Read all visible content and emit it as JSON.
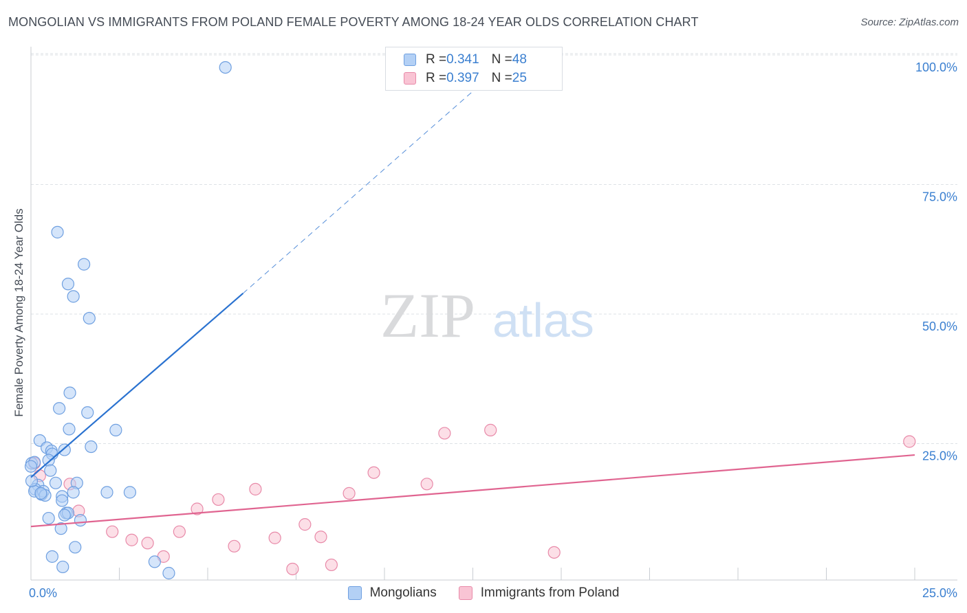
{
  "title": "MONGOLIAN VS IMMIGRANTS FROM POLAND FEMALE POVERTY AMONG 18-24 YEAR OLDS CORRELATION CHART",
  "source": "Source: ZipAtlas.com",
  "watermark": {
    "zip": "ZIP",
    "atlas": "atlas"
  },
  "colors": {
    "mongolians_fill": "#b3d0f5",
    "mongolians_stroke": "#6e9fe0",
    "mongolians_line": "#2a72d0",
    "poland_fill": "#f9c4d4",
    "poland_stroke": "#e889a8",
    "poland_line": "#e06490",
    "axis_label_color": "#3a7fd0",
    "grid_color": "#dde1e6"
  },
  "legend": {
    "rows": [
      {
        "r_label": "R = ",
        "r_value": "0.341",
        "n_label": "N = ",
        "n_value": "48"
      },
      {
        "r_label": "R = ",
        "r_value": "0.397",
        "n_label": "N = ",
        "n_value": "25"
      }
    ]
  },
  "chart_data": {
    "type": "scatter",
    "title": "MONGOLIAN VS IMMIGRANTS FROM POLAND FEMALE POVERTY AMONG 18-24 YEAR OLDS CORRELATION CHART",
    "xlabel": "",
    "ylabel": "Female Poverty Among 18-24 Year Olds",
    "xlim": [
      0,
      25
    ],
    "ylim": [
      0,
      100
    ],
    "x_ticks": [
      0,
      25
    ],
    "x_tick_labels": [
      "0.0%",
      "25.0%"
    ],
    "y_ticks": [
      25,
      50,
      75,
      100
    ],
    "y_tick_labels": [
      "25.0%",
      "50.0%",
      "75.0%",
      "100.0%"
    ],
    "grid": true,
    "legend_position": "top-center",
    "series": [
      {
        "name": "Mongolians",
        "R": 0.341,
        "N": 48,
        "trend": {
          "x0": 0.0,
          "y0": 18.5,
          "x1": 6.0,
          "y1": 54.0,
          "dash_to_x": 13.0,
          "dash_to_y": 96.0
        },
        "points": [
          [
            5.5,
            97.6
          ],
          [
            0.75,
            65.8
          ],
          [
            1.5,
            59.6
          ],
          [
            1.05,
            55.8
          ],
          [
            1.2,
            53.4
          ],
          [
            1.65,
            49.2
          ],
          [
            1.1,
            34.8
          ],
          [
            0.8,
            31.8
          ],
          [
            1.6,
            31.0
          ],
          [
            1.08,
            27.8
          ],
          [
            2.4,
            27.6
          ],
          [
            1.7,
            24.4
          ],
          [
            0.25,
            25.6
          ],
          [
            0.45,
            24.2
          ],
          [
            0.58,
            23.6
          ],
          [
            0.95,
            23.8
          ],
          [
            0.6,
            23.0
          ],
          [
            0.5,
            21.8
          ],
          [
            0.02,
            21.2
          ],
          [
            0.1,
            21.4
          ],
          [
            0.55,
            19.8
          ],
          [
            0.0,
            20.6
          ],
          [
            0.2,
            17.0
          ],
          [
            0.12,
            16.2
          ],
          [
            0.1,
            15.8
          ],
          [
            0.3,
            15.2
          ],
          [
            0.35,
            15.8
          ],
          [
            0.4,
            15.0
          ],
          [
            0.7,
            17.4
          ],
          [
            1.3,
            17.4
          ],
          [
            0.88,
            14.8
          ],
          [
            1.2,
            15.6
          ],
          [
            2.15,
            15.6
          ],
          [
            2.8,
            15.6
          ],
          [
            0.88,
            14.0
          ],
          [
            0.5,
            10.6
          ],
          [
            1.0,
            11.6
          ],
          [
            1.05,
            11.6
          ],
          [
            0.95,
            11.2
          ],
          [
            1.4,
            10.2
          ],
          [
            0.85,
            8.6
          ],
          [
            1.25,
            5.0
          ],
          [
            0.6,
            3.2
          ],
          [
            0.9,
            1.2
          ],
          [
            3.5,
            2.2
          ],
          [
            3.9,
            0.0
          ],
          [
            0.02,
            17.8
          ],
          [
            0.28,
            15.4
          ]
        ]
      },
      {
        "name": "Immigrants from Poland",
        "R": 0.397,
        "N": 25,
        "trend": {
          "x0": 0.0,
          "y0": 9.0,
          "x1": 25.0,
          "y1": 22.8
        },
        "points": [
          [
            0.1,
            21.2
          ],
          [
            0.25,
            18.8
          ],
          [
            1.1,
            17.2
          ],
          [
            1.35,
            12.0
          ],
          [
            2.3,
            8.0
          ],
          [
            2.85,
            6.4
          ],
          [
            3.3,
            5.8
          ],
          [
            3.75,
            3.2
          ],
          [
            4.2,
            8.0
          ],
          [
            4.7,
            12.4
          ],
          [
            5.3,
            14.2
          ],
          [
            5.75,
            5.2
          ],
          [
            6.35,
            16.2
          ],
          [
            6.9,
            6.8
          ],
          [
            7.4,
            0.8
          ],
          [
            7.75,
            9.4
          ],
          [
            8.2,
            7.0
          ],
          [
            8.5,
            1.6
          ],
          [
            9.0,
            15.4
          ],
          [
            9.7,
            19.4
          ],
          [
            11.2,
            17.2
          ],
          [
            11.7,
            27.0
          ],
          [
            13.0,
            27.6
          ],
          [
            14.8,
            4.0
          ],
          [
            24.85,
            25.4
          ]
        ]
      }
    ]
  }
}
